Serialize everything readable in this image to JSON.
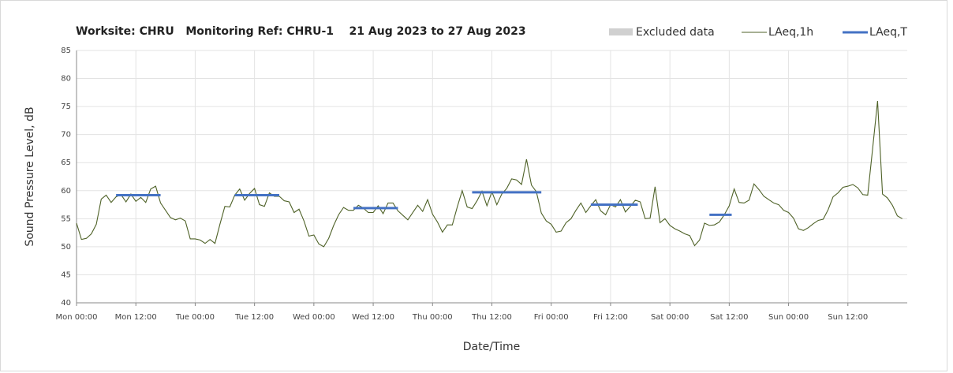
{
  "chart_data": {
    "type": "line",
    "title": "Worksite: CHRU   Monitoring Ref: CHRU-1    21 Aug 2023 to 27 Aug 2023",
    "xlabel": "Date/Time",
    "ylabel": "Sound Pressure Level, dB",
    "excluded_data": {
      "name": "Excluded data",
      "color": "#d0d0d0"
    },
    "x": [
      0,
      1,
      2,
      3,
      4,
      5,
      6,
      7,
      8,
      9,
      10,
      11,
      12,
      13,
      14,
      15,
      16,
      17,
      18,
      19,
      20,
      21,
      22,
      23,
      24,
      25,
      26,
      27,
      28,
      29,
      30,
      31,
      32,
      33,
      34,
      35,
      36,
      37,
      38,
      39,
      40,
      41,
      42,
      43,
      44,
      45,
      46,
      47,
      48,
      49,
      50,
      51,
      52,
      53,
      54,
      55,
      56,
      57,
      58,
      59,
      60,
      61,
      62,
      63,
      64,
      65,
      66,
      67,
      68,
      69,
      70,
      71,
      72,
      73,
      74,
      75,
      76,
      77,
      78,
      79,
      80,
      81,
      82,
      83,
      84,
      85,
      86,
      87,
      88,
      89,
      90,
      91,
      92,
      93,
      94,
      95,
      96,
      97,
      98,
      99,
      100,
      101,
      102,
      103,
      104,
      105,
      106,
      107,
      108,
      109,
      110,
      111,
      112,
      113,
      114,
      115,
      116,
      117,
      118,
      119,
      120,
      121,
      122,
      123,
      124,
      125,
      126,
      127,
      128,
      129,
      130,
      131,
      132,
      133,
      134,
      135,
      136,
      137,
      138,
      139,
      140,
      141,
      142,
      143,
      144,
      145,
      146,
      147,
      148,
      149,
      150,
      151,
      152,
      153,
      154,
      155,
      156,
      157,
      158,
      159,
      160,
      161,
      162,
      163,
      164,
      165,
      166,
      167
    ],
    "series": [
      {
        "name": "LAeq,1h",
        "color": "#4f6228",
        "values": [
          54.2,
          51.3,
          51.5,
          52.3,
          54,
          58.5,
          59.2,
          57.9,
          58.9,
          59.3,
          58,
          59.4,
          58.1,
          58.8,
          57.9,
          60.3,
          60.8,
          57.8,
          56.5,
          55.2,
          54.8,
          55.1,
          54.6,
          51.4,
          51.4,
          51.2,
          50.6,
          51.3,
          50.6,
          54,
          57.2,
          57.1,
          59.2,
          60.3,
          58.3,
          59.5,
          60.4,
          57.5,
          57.2,
          59.6,
          59,
          59,
          58.2,
          58,
          56.1,
          56.7,
          54.6,
          51.9,
          52.1,
          50.5,
          50,
          51.5,
          53.8,
          55.7,
          57,
          56.5,
          56.5,
          57.4,
          56.9,
          56.1,
          56.1,
          57.3,
          55.9,
          57.8,
          57.8,
          56.4,
          55.6,
          54.8,
          56.1,
          57.4,
          56.3,
          58.4,
          55.8,
          54.4,
          52.6,
          53.9,
          53.9,
          57.1,
          60,
          57.1,
          56.8,
          58.2,
          59.9,
          57.3,
          59.8,
          57.5,
          59.4,
          60.4,
          62.1,
          61.9,
          61.1,
          65.6,
          61,
          59.8,
          56,
          54.6,
          54,
          52.6,
          52.8,
          54.3,
          55,
          56.5,
          57.8,
          56.1,
          57.3,
          58.4,
          56.4,
          55.7,
          57.5,
          57.1,
          58.4,
          56.2,
          57.2,
          58.3,
          58,
          55,
          55.1,
          60.7,
          54.3,
          55,
          53.8,
          53.2,
          52.8,
          52.3,
          52,
          50.2,
          51.2,
          54.2,
          53.8,
          53.9,
          54.4,
          55.7,
          57.3,
          60.3,
          57.9,
          57.8,
          58.3,
          61.2,
          60.2,
          59,
          58.4,
          57.8,
          57.5,
          56.5,
          56.1,
          55.1,
          53.2,
          52.9,
          53.4,
          54.1,
          54.7,
          54.9,
          56.6,
          58.9,
          59.6,
          60.6,
          60.8,
          61.1,
          60.5,
          59.3,
          59.2,
          67.5,
          76,
          59.4,
          58.7,
          57.4,
          55.5,
          55
        ]
      },
      {
        "name": "LAeq,T",
        "color": "#4472c4",
        "segments": [
          {
            "start": 8,
            "end": 17,
            "value": 59.2
          },
          {
            "start": 32,
            "end": 41,
            "value": 59.2
          },
          {
            "start": 56,
            "end": 65,
            "value": 56.9
          },
          {
            "start": 80,
            "end": 94,
            "value": 59.7
          },
          {
            "start": 104,
            "end": 113.5,
            "value": 57.5
          },
          {
            "start": 128,
            "end": 132.5,
            "value": 55.7
          }
        ]
      }
    ],
    "xlim": [
      0,
      168
    ],
    "xticks": [
      {
        "value": 0,
        "label": "Mon 00:00"
      },
      {
        "value": 12,
        "label": "Mon 12:00"
      },
      {
        "value": 24,
        "label": "Tue 00:00"
      },
      {
        "value": 36,
        "label": "Tue 12:00"
      },
      {
        "value": 48,
        "label": "Wed 00:00"
      },
      {
        "value": 60,
        "label": "Wed 12:00"
      },
      {
        "value": 72,
        "label": "Thu 00:00"
      },
      {
        "value": 84,
        "label": "Thu 12:00"
      },
      {
        "value": 96,
        "label": "Fri 00:00"
      },
      {
        "value": 108,
        "label": "Fri 12:00"
      },
      {
        "value": 120,
        "label": "Sat 00:00"
      },
      {
        "value": 132,
        "label": "Sat 12:00"
      },
      {
        "value": 144,
        "label": "Sun 00:00"
      },
      {
        "value": 156,
        "label": "Sun 12:00"
      }
    ],
    "ylim": [
      40,
      85
    ],
    "yticks": [
      40,
      45,
      50,
      55,
      60,
      65,
      70,
      75,
      80,
      85
    ],
    "grid": true
  }
}
